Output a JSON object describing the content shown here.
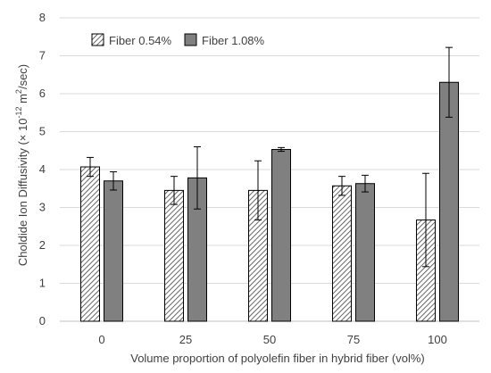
{
  "chart_data": {
    "type": "bar",
    "title": "",
    "categories": [
      "0",
      "25",
      "50",
      "75",
      "100"
    ],
    "series": [
      {
        "name": "Fiber 0.54%",
        "values": [
          4.07,
          3.45,
          3.45,
          3.57,
          2.67
        ],
        "errors": [
          0.25,
          0.37,
          0.78,
          0.25,
          1.23
        ],
        "color": "#ffffff",
        "pattern": "diagonal-hatch"
      },
      {
        "name": "Fiber 1.08%",
        "values": [
          3.7,
          3.78,
          4.53,
          3.63,
          6.3
        ],
        "errors": [
          0.24,
          0.82,
          0.05,
          0.22,
          0.92
        ],
        "color": "#808080",
        "pattern": "solid"
      }
    ],
    "xlabel": "Volume proportion of polyolefin fiber in hybrid fiber (vol%)",
    "ylabel": {
      "prefix": "Choldide Ion Diffusivity (× 10",
      "exponent": "-12",
      "middle": " m",
      "exponent2": "2",
      "suffix": "/sec)"
    },
    "ylim": [
      0,
      8
    ],
    "yticks": [
      "0",
      "1",
      "2",
      "3",
      "4",
      "5",
      "6",
      "7",
      "8"
    ],
    "grid": true,
    "legend_position": "top-left"
  }
}
